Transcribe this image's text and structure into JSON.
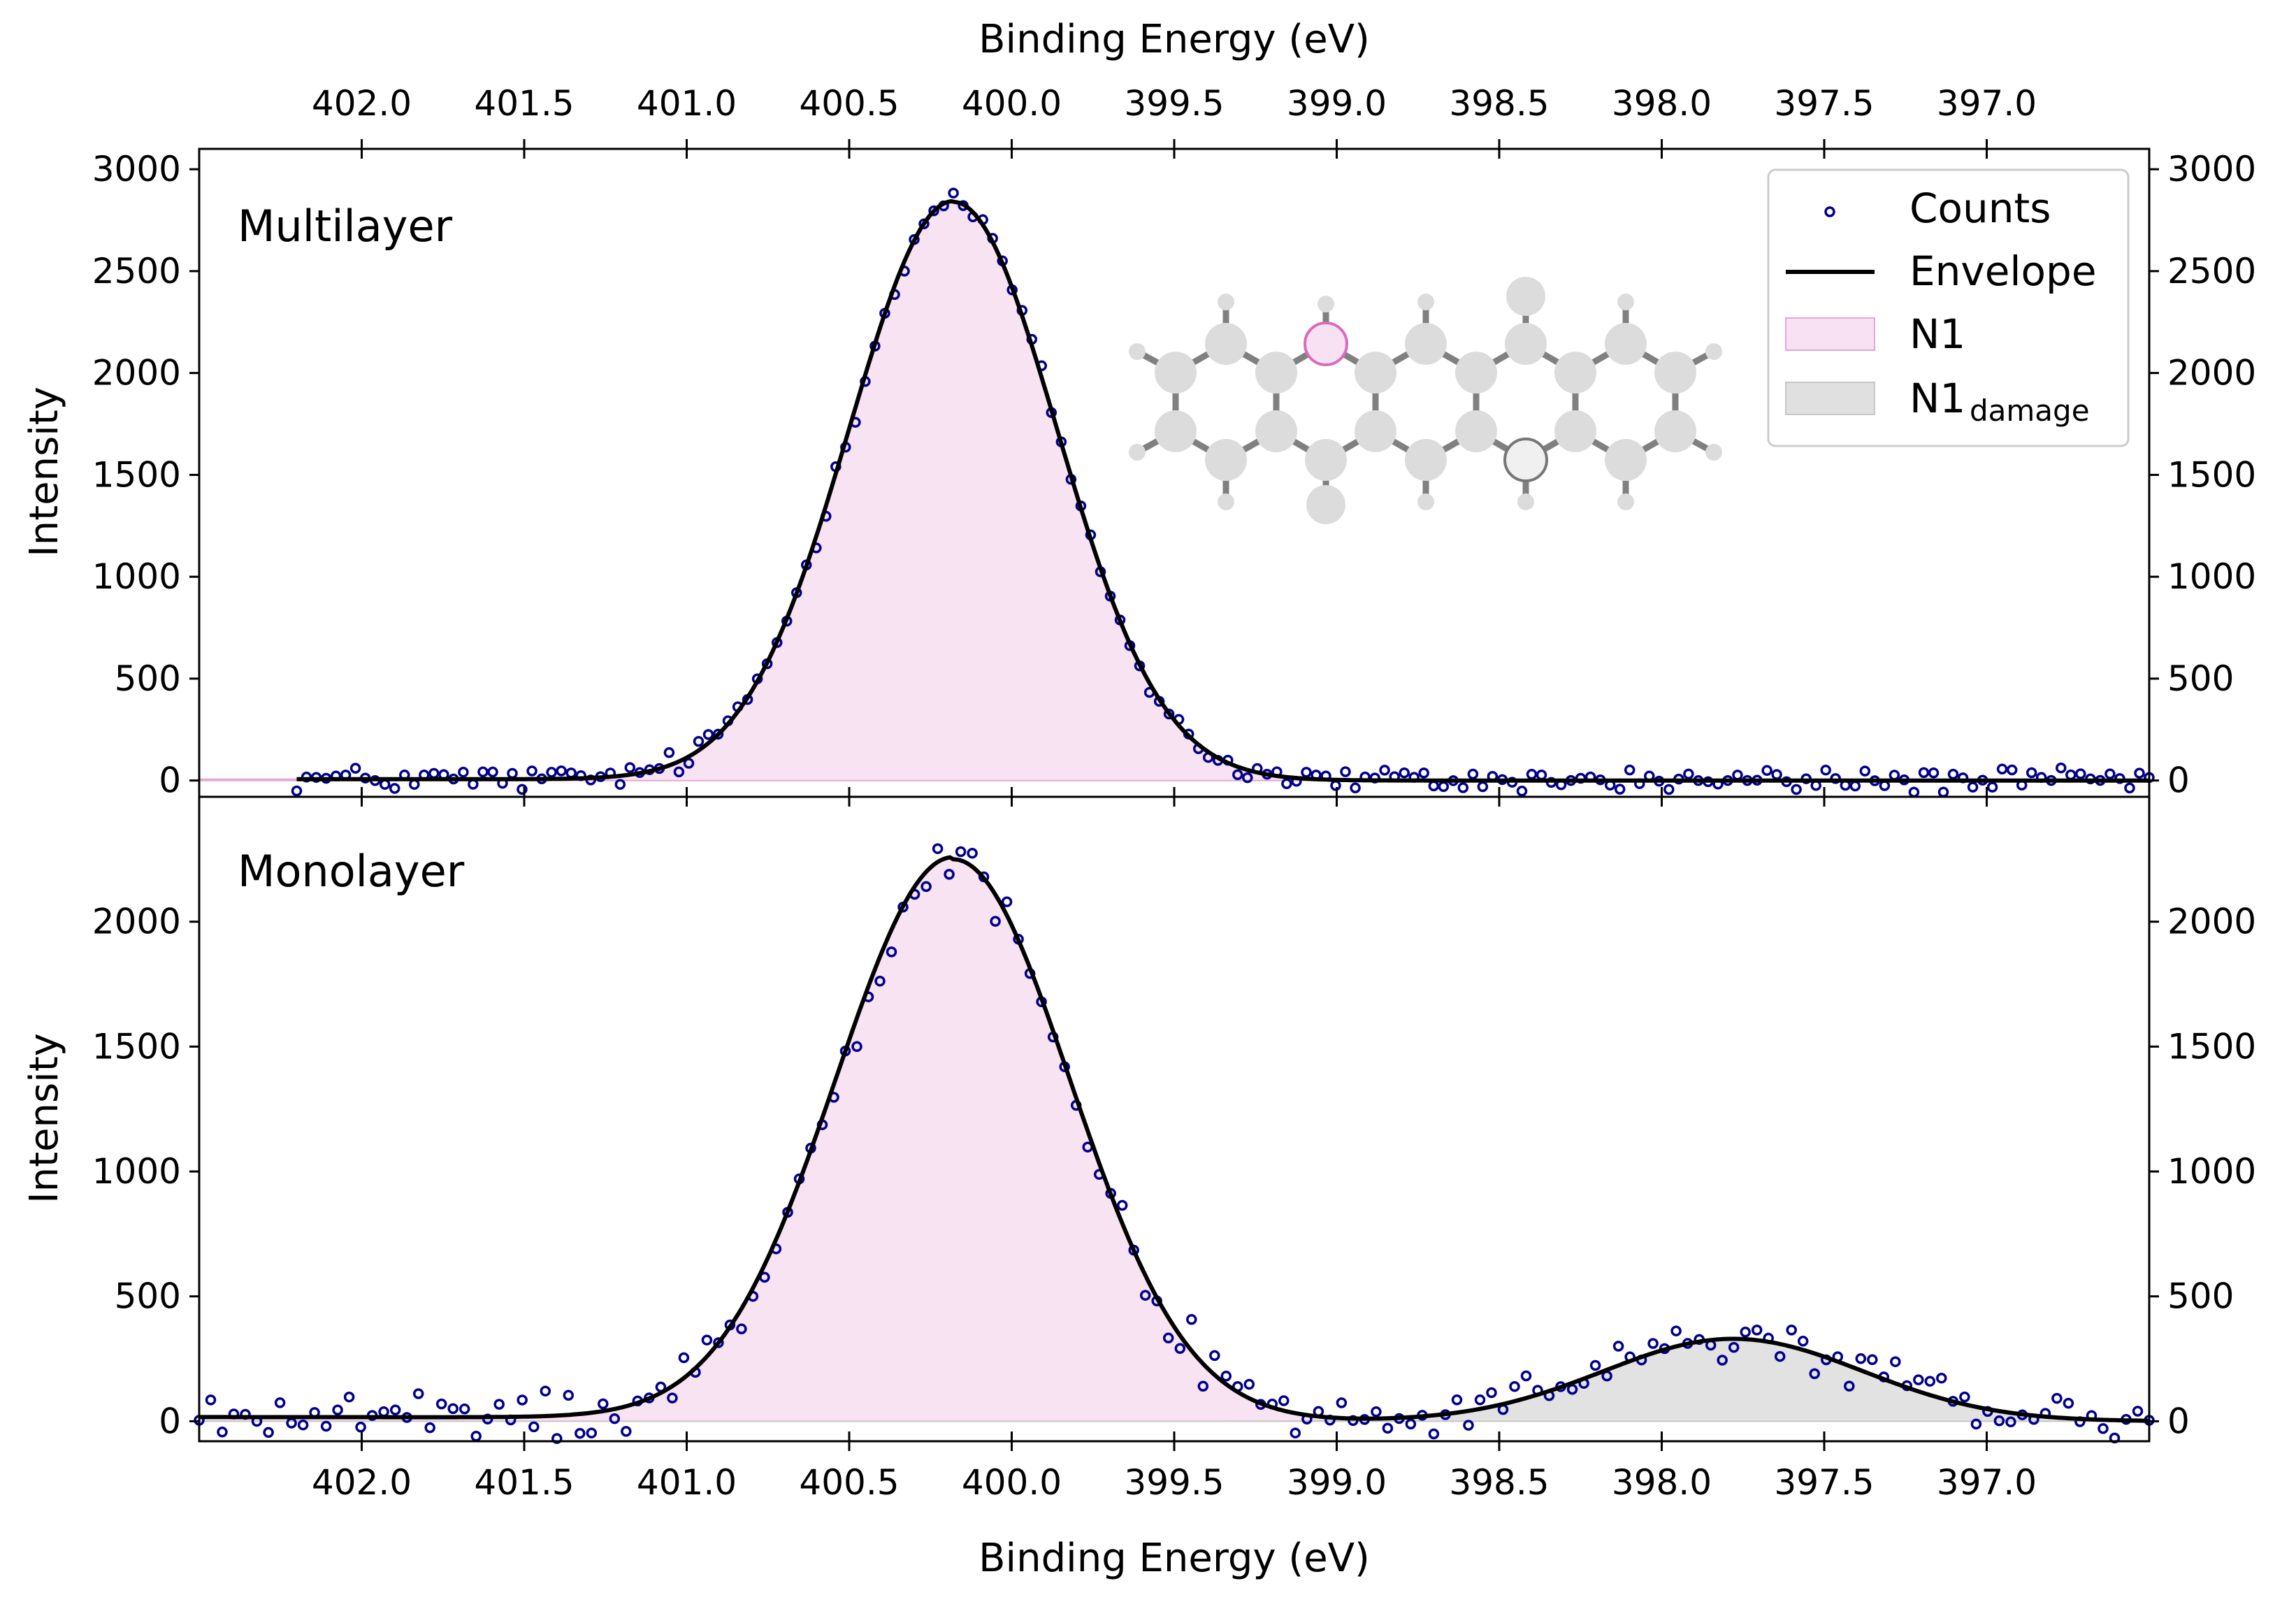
{
  "chart_data": [
    {
      "panel": "top",
      "type": "scatter",
      "label": "Multilayer",
      "xlabel": "Binding Energy (eV)",
      "ylabel": "Intensity",
      "xlim": [
        402.5,
        396.5
      ],
      "ylim": [
        -80,
        3100
      ],
      "x_reversed": true,
      "xticks": [
        402.0,
        401.5,
        401.0,
        400.5,
        400.0,
        399.5,
        399.0,
        398.5,
        398.0,
        397.5,
        397.0
      ],
      "xtick_labels": [
        "402.0",
        "401.5",
        "401.0",
        "400.5",
        "400.0",
        "399.5",
        "399.0",
        "398.5",
        "398.0",
        "397.5",
        "397.0"
      ],
      "yticks": [
        0,
        500,
        1000,
        1500,
        2000,
        2500,
        3000
      ],
      "ytick_labels": [
        "0",
        "500",
        "1000",
        "1500",
        "2000",
        "2500",
        "3000"
      ],
      "components": [
        {
          "name": "N1",
          "center": 400.18,
          "amplitude": 2840,
          "sigma": 0.32,
          "tail": 0.08,
          "color": "#f8e1f2",
          "edge": "#e3a8d6"
        }
      ],
      "series": [
        {
          "name": "Counts",
          "x_range": [
            402.2,
            396.5
          ],
          "n_points": 190,
          "noise": 45,
          "marker": "circle-open",
          "color": "#00008b"
        },
        {
          "name": "Envelope",
          "line": "solid",
          "color": "#000000"
        }
      ],
      "legend": {
        "position": "top-right",
        "entries": [
          {
            "label": "Counts",
            "kind": "marker",
            "color": "#00008b"
          },
          {
            "label": "Envelope",
            "kind": "line",
            "color": "#000000"
          },
          {
            "label": "N1",
            "kind": "patch",
            "color": "#f8e1f2",
            "edge": "#e3a8d6"
          },
          {
            "label": "N1",
            "sub": "damage",
            "kind": "patch",
            "color": "#e0e0e0",
            "edge": "#c8c8c8"
          }
        ]
      },
      "inset": "molecule structure diagram"
    },
    {
      "panel": "bottom",
      "type": "scatter",
      "label": "Monolayer",
      "xlabel": "Binding Energy (eV)",
      "ylabel": "Intensity",
      "xlim": [
        402.5,
        396.5
      ],
      "ylim": [
        -80,
        2500
      ],
      "x_reversed": true,
      "xticks": [
        402.0,
        401.5,
        401.0,
        400.5,
        400.0,
        399.5,
        399.0,
        398.5,
        398.0,
        397.5,
        397.0
      ],
      "xtick_labels": [
        "402.0",
        "401.5",
        "401.0",
        "400.5",
        "400.0",
        "399.5",
        "399.0",
        "398.5",
        "398.0",
        "397.5",
        "397.0"
      ],
      "yticks": [
        0,
        500,
        1000,
        1500,
        2000
      ],
      "ytick_labels": [
        "0",
        "500",
        "1000",
        "1500",
        "2000"
      ],
      "components": [
        {
          "name": "N1",
          "center": 400.18,
          "amplitude": 2250,
          "sigma": 0.36,
          "tail": 0.25,
          "color": "#f8e1f2",
          "edge": "#e3a8d6"
        },
        {
          "name": "N1_damage",
          "center": 397.78,
          "amplitude": 330,
          "sigma": 0.4,
          "tail": 0.0,
          "color": "#e0e0e0",
          "edge": "#c8c8c8"
        }
      ],
      "series": [
        {
          "name": "Counts",
          "x_range": [
            402.5,
            396.5
          ],
          "n_points": 170,
          "noise": 70,
          "marker": "circle-open",
          "color": "#00008b"
        },
        {
          "name": "Envelope",
          "line": "solid",
          "color": "#000000"
        }
      ]
    }
  ],
  "text": {
    "top_axis_title": "Binding Energy (eV)",
    "bottom_axis_title": "Binding Energy (eV)",
    "y_title_top": "Intensity",
    "y_title_bottom": "Intensity",
    "panel_top_label": "Multilayer",
    "panel_bottom_label": "Monolayer",
    "legend_counts": "Counts",
    "legend_envelope": "Envelope",
    "legend_n1": "N1",
    "legend_n1d": "N1",
    "legend_n1d_sub": "damage"
  }
}
